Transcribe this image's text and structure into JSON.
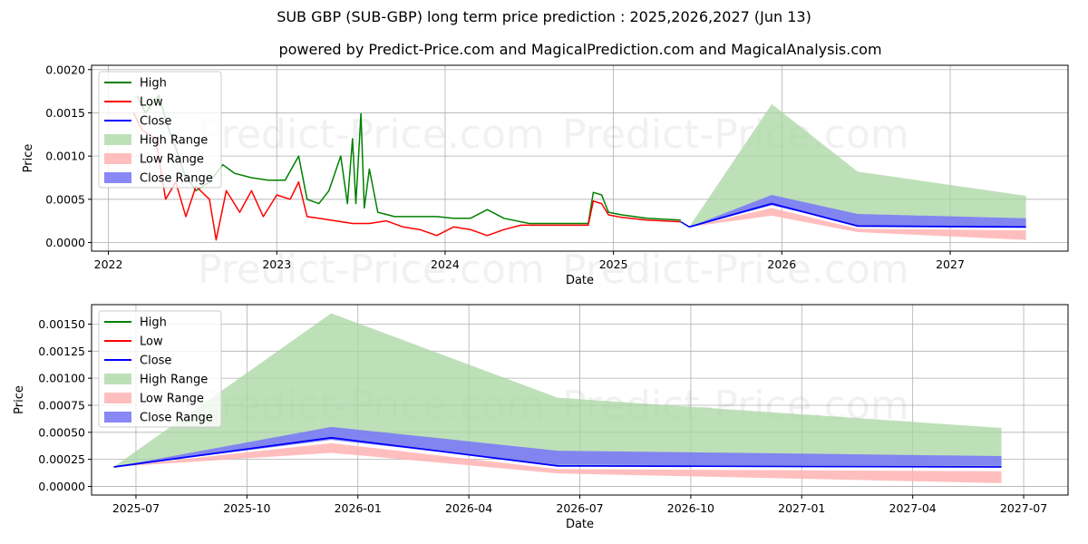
{
  "title": "SUB GBP (SUB-GBP) long term price prediction : 2025,2026,2027 (Jun 13)",
  "subtitle": "powered by Predict-Price.com and MagicalPrediction.com and MagicalAnalysis.com",
  "watermark": "Predict-Price.com",
  "colors": {
    "high": "#008000",
    "low": "#ff0000",
    "close": "#0000ff",
    "high_range": "#a8d5a2",
    "low_range": "#ffb3b3",
    "close_range": "#7b7bf5"
  },
  "legend": {
    "labels": [
      "High",
      "Low",
      "Close",
      "High Range",
      "Low Range",
      "Close Range"
    ],
    "location": "upper-left"
  },
  "chart_data": [
    {
      "type": "line",
      "name": "history-and-prediction",
      "xlabel": "Date",
      "ylabel": "Price",
      "xlim": [
        2021.9,
        2027.7
      ],
      "ylim": [
        -0.0001,
        0.00205
      ],
      "x_ticks": [
        2022,
        2023,
        2024,
        2025,
        2026,
        2027
      ],
      "x_tick_labels": [
        "2022",
        "2023",
        "2024",
        "2025",
        "2026",
        "2027"
      ],
      "y_ticks": [
        0,
        0.0005,
        0.001,
        0.0015,
        0.002
      ],
      "y_tick_labels": [
        "0.0000",
        "0.0005",
        "0.0010",
        "0.0015",
        "0.0020"
      ],
      "grid": true,
      "history": {
        "high": [
          [
            2022.17,
            0.0017
          ],
          [
            2022.22,
            0.0015
          ],
          [
            2022.3,
            0.0017
          ],
          [
            2022.36,
            0.0013
          ],
          [
            2022.4,
            0.0011
          ],
          [
            2022.45,
            0.0008
          ],
          [
            2022.52,
            0.0006
          ],
          [
            2022.6,
            0.0007
          ],
          [
            2022.68,
            0.0009
          ],
          [
            2022.75,
            0.0008
          ],
          [
            2022.85,
            0.00075
          ],
          [
            2022.95,
            0.00072
          ],
          [
            2023.05,
            0.00072
          ],
          [
            2023.13,
            0.001
          ],
          [
            2023.18,
            0.0005
          ],
          [
            2023.25,
            0.00045
          ],
          [
            2023.31,
            0.0006
          ],
          [
            2023.38,
            0.001
          ],
          [
            2023.42,
            0.00045
          ],
          [
            2023.45,
            0.0012
          ],
          [
            2023.47,
            0.00045
          ],
          [
            2023.5,
            0.00149
          ],
          [
            2023.52,
            0.0004
          ],
          [
            2023.55,
            0.00085
          ],
          [
            2023.6,
            0.00035
          ],
          [
            2023.7,
            0.0003
          ],
          [
            2023.85,
            0.0003
          ],
          [
            2023.95,
            0.0003
          ],
          [
            2024.05,
            0.00028
          ],
          [
            2024.15,
            0.00028
          ],
          [
            2024.25,
            0.00038
          ],
          [
            2024.35,
            0.00028
          ],
          [
            2024.5,
            0.00022
          ],
          [
            2024.7,
            0.00022
          ],
          [
            2024.85,
            0.00022
          ],
          [
            2024.88,
            0.00058
          ],
          [
            2024.93,
            0.00055
          ],
          [
            2024.97,
            0.00035
          ],
          [
            2025.05,
            0.00032
          ],
          [
            2025.2,
            0.00028
          ],
          [
            2025.4,
            0.00026
          ]
        ],
        "low": [
          [
            2022.15,
            0.0015
          ],
          [
            2022.2,
            0.0013
          ],
          [
            2022.28,
            0.0012
          ],
          [
            2022.34,
            0.0005
          ],
          [
            2022.4,
            0.0007
          ],
          [
            2022.46,
            0.0003
          ],
          [
            2022.52,
            0.00065
          ],
          [
            2022.6,
            0.0005
          ],
          [
            2022.64,
            3e-05
          ],
          [
            2022.7,
            0.0006
          ],
          [
            2022.78,
            0.00035
          ],
          [
            2022.85,
            0.0006
          ],
          [
            2022.92,
            0.0003
          ],
          [
            2023.0,
            0.00055
          ],
          [
            2023.08,
            0.0005
          ],
          [
            2023.13,
            0.0007
          ],
          [
            2023.18,
            0.0003
          ],
          [
            2023.25,
            0.00028
          ],
          [
            2023.35,
            0.00025
          ],
          [
            2023.45,
            0.00022
          ],
          [
            2023.55,
            0.00022
          ],
          [
            2023.65,
            0.00025
          ],
          [
            2023.75,
            0.00018
          ],
          [
            2023.85,
            0.00015
          ],
          [
            2023.95,
            8e-05
          ],
          [
            2024.05,
            0.00018
          ],
          [
            2024.15,
            0.00015
          ],
          [
            2024.25,
            8e-05
          ],
          [
            2024.35,
            0.00015
          ],
          [
            2024.45,
            0.0002
          ],
          [
            2024.6,
            0.0002
          ],
          [
            2024.75,
            0.0002
          ],
          [
            2024.85,
            0.0002
          ],
          [
            2024.88,
            0.00048
          ],
          [
            2024.93,
            0.00045
          ],
          [
            2024.97,
            0.00032
          ],
          [
            2025.05,
            0.00029
          ],
          [
            2025.2,
            0.00026
          ],
          [
            2025.4,
            0.00024
          ]
        ],
        "close": [
          [
            2025.4,
            0.00024
          ],
          [
            2025.45,
            0.00018
          ]
        ]
      },
      "prediction": {
        "x": [
          2025.45,
          2025.94,
          2026.45,
          2027.45
        ],
        "close": [
          0.00018,
          0.00045,
          0.00019,
          0.00018
        ],
        "high_range": [
          0.00018,
          0.0016,
          0.00082,
          0.00054
        ],
        "low_range_upper": [
          0.00018,
          0.0004,
          0.00016,
          0.00014
        ],
        "low_range_lower": [
          0.00018,
          0.00031,
          0.00012,
          3e-05
        ],
        "close_range_upper": [
          0.00018,
          0.00055,
          0.00033,
          0.00028
        ],
        "close_range_lower": [
          0.00018,
          0.00043,
          0.0002,
          0.00019
        ]
      }
    },
    {
      "type": "line",
      "name": "prediction-zoom",
      "xlabel": "Date",
      "ylabel": "Price",
      "xlim": [
        2025.4,
        2027.6
      ],
      "ylim": [
        -8e-05,
        0.00168
      ],
      "x_ticks": [
        2025.5,
        2025.75,
        2026.0,
        2026.25,
        2026.5,
        2026.75,
        2027.0,
        2027.25,
        2027.5
      ],
      "x_tick_labels": [
        "2025-07",
        "2025-10",
        "2026-01",
        "2026-04",
        "2026-07",
        "2026-10",
        "2027-01",
        "2027-04",
        "2027-07"
      ],
      "y_ticks": [
        0,
        0.00025,
        0.0005,
        0.00075,
        0.001,
        0.00125,
        0.0015
      ],
      "y_tick_labels": [
        "0.00000",
        "0.00025",
        "0.00050",
        "0.00075",
        "0.00100",
        "0.00125",
        "0.00150"
      ],
      "grid": true,
      "prediction": {
        "x": [
          2025.45,
          2025.94,
          2026.45,
          2027.45
        ],
        "close": [
          0.00018,
          0.00045,
          0.00019,
          0.00018
        ],
        "high_range": [
          0.00018,
          0.0016,
          0.00082,
          0.00054
        ],
        "low_range_upper": [
          0.00018,
          0.0004,
          0.00016,
          0.00014
        ],
        "low_range_lower": [
          0.00018,
          0.00031,
          0.00012,
          3e-05
        ],
        "close_range_upper": [
          0.00018,
          0.00055,
          0.00033,
          0.00028
        ],
        "close_range_lower": [
          0.00018,
          0.00043,
          0.0002,
          0.00019
        ]
      }
    }
  ]
}
